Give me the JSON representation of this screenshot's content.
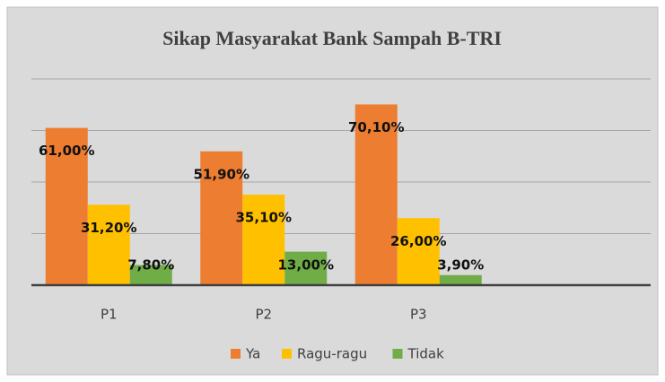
{
  "chart_data": {
    "type": "bar",
    "title": "Sikap Masyarakat Bank Sampah B-TRI",
    "categories": [
      "P1",
      "P2",
      "P3",
      null
    ],
    "series": [
      {
        "name": "Ya",
        "color": "#ed7d31",
        "values": [
          61.0,
          51.9,
          70.1,
          null
        ],
        "value_labels": [
          "61,00%",
          "51,90%",
          "70,10%",
          null
        ]
      },
      {
        "name": "Ragu-ragu",
        "color": "#ffc000",
        "values": [
          31.2,
          35.1,
          26.0,
          null
        ],
        "value_labels": [
          "31,20%",
          "35,10%",
          "26,00%",
          null
        ]
      },
      {
        "name": "Tidak",
        "color": "#70ad47",
        "values": [
          7.8,
          13.0,
          3.9,
          null
        ],
        "value_labels": [
          "7,80%",
          "13,00%",
          "3,90%",
          null
        ]
      }
    ],
    "ylim": [
      0,
      80
    ],
    "yticks": [
      0,
      20,
      40,
      60,
      80
    ],
    "grid": true,
    "legend": "bottom"
  }
}
